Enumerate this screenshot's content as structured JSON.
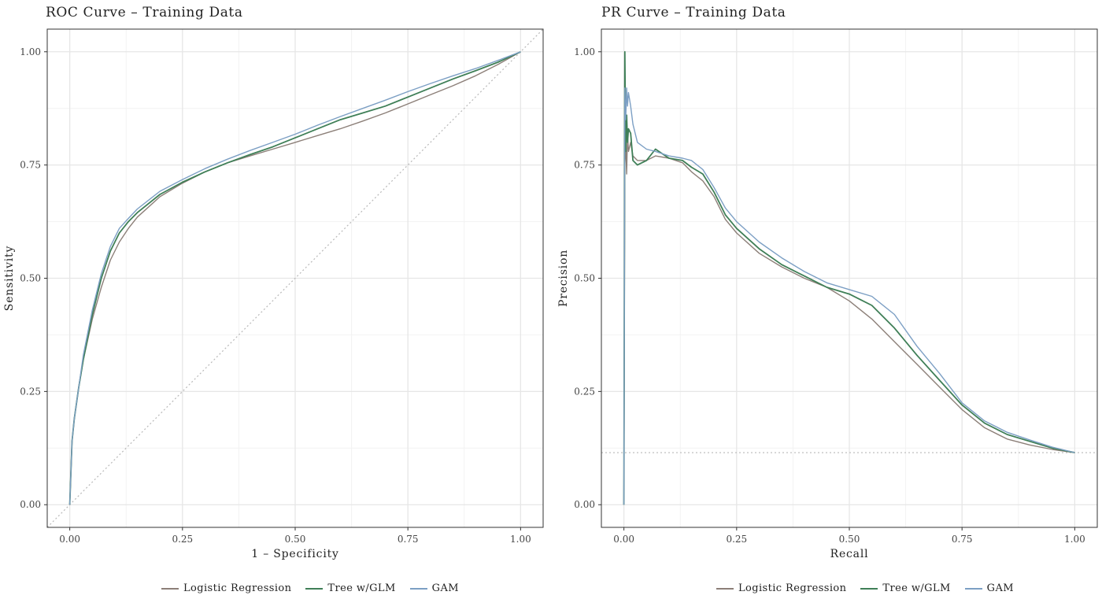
{
  "colors": {
    "logistic": "#8c7f78",
    "tree": "#3f7f57",
    "gam": "#7c9fc4",
    "reference": "#b8b8b8",
    "grid_major": "#e6e6e6",
    "grid_minor": "#f2f2f2",
    "panel_border": "#333333"
  },
  "legend": {
    "items": [
      {
        "label": "Logistic Regression",
        "color": "#8c7f78"
      },
      {
        "label": "Tree w/GLM",
        "color": "#3f7f57"
      },
      {
        "label": "GAM",
        "color": "#7c9fc4"
      }
    ]
  },
  "chart_data": [
    {
      "type": "line",
      "title": "ROC Curve – Training Data",
      "xlabel": "1 – Specificity",
      "ylabel": "Sensitivity",
      "xlim": [
        -0.05,
        1.05
      ],
      "ylim": [
        -0.05,
        1.05
      ],
      "x_ticks": [
        "0.00",
        "0.25",
        "0.50",
        "0.75",
        "1.00"
      ],
      "y_ticks": [
        "0.00",
        "0.25",
        "0.50",
        "0.75",
        "1.00"
      ],
      "grid": true,
      "reference_line": {
        "type": "diagonal",
        "style": "dotted"
      },
      "series": [
        {
          "name": "Logistic Regression",
          "x": [
            0,
            0.005,
            0.01,
            0.02,
            0.03,
            0.05,
            0.07,
            0.09,
            0.11,
            0.13,
            0.15,
            0.2,
            0.25,
            0.3,
            0.35,
            0.4,
            0.45,
            0.5,
            0.55,
            0.6,
            0.65,
            0.7,
            0.75,
            0.8,
            0.85,
            0.9,
            0.95,
            1.0
          ],
          "y": [
            0,
            0.14,
            0.19,
            0.26,
            0.32,
            0.41,
            0.48,
            0.54,
            0.58,
            0.61,
            0.635,
            0.68,
            0.71,
            0.735,
            0.755,
            0.77,
            0.785,
            0.8,
            0.815,
            0.83,
            0.847,
            0.865,
            0.885,
            0.905,
            0.925,
            0.947,
            0.972,
            1.0
          ]
        },
        {
          "name": "Tree w/GLM",
          "x": [
            0,
            0.005,
            0.01,
            0.02,
            0.03,
            0.05,
            0.07,
            0.09,
            0.11,
            0.13,
            0.15,
            0.2,
            0.25,
            0.3,
            0.35,
            0.4,
            0.45,
            0.5,
            0.55,
            0.6,
            0.65,
            0.7,
            0.75,
            0.8,
            0.85,
            0.9,
            0.95,
            1.0
          ],
          "y": [
            0,
            0.14,
            0.19,
            0.26,
            0.32,
            0.42,
            0.5,
            0.56,
            0.6,
            0.625,
            0.645,
            0.685,
            0.712,
            0.735,
            0.755,
            0.773,
            0.79,
            0.81,
            0.83,
            0.85,
            0.865,
            0.88,
            0.9,
            0.92,
            0.94,
            0.958,
            0.977,
            1.0
          ]
        },
        {
          "name": "GAM",
          "x": [
            0,
            0.005,
            0.01,
            0.02,
            0.03,
            0.05,
            0.07,
            0.09,
            0.11,
            0.13,
            0.15,
            0.2,
            0.25,
            0.3,
            0.35,
            0.4,
            0.45,
            0.5,
            0.55,
            0.6,
            0.65,
            0.7,
            0.75,
            0.8,
            0.85,
            0.9,
            0.95,
            1.0
          ],
          "y": [
            0,
            0.14,
            0.19,
            0.26,
            0.33,
            0.43,
            0.51,
            0.57,
            0.61,
            0.632,
            0.653,
            0.692,
            0.718,
            0.742,
            0.763,
            0.782,
            0.8,
            0.818,
            0.838,
            0.857,
            0.875,
            0.893,
            0.912,
            0.93,
            0.947,
            0.963,
            0.981,
            1.0
          ]
        }
      ]
    },
    {
      "type": "line",
      "title": "PR Curve – Training Data",
      "xlabel": "Recall",
      "ylabel": "Precision",
      "xlim": [
        -0.05,
        1.05
      ],
      "ylim": [
        -0.05,
        1.05
      ],
      "x_ticks": [
        "0.00",
        "0.25",
        "0.50",
        "0.75",
        "1.00"
      ],
      "y_ticks": [
        "0.00",
        "0.25",
        "0.50",
        "0.75",
        "1.00"
      ],
      "grid": true,
      "reference_line": {
        "type": "horizontal",
        "y": 0.115,
        "style": "dotted"
      },
      "series": [
        {
          "name": "Logistic Regression",
          "x": [
            0,
            0.002,
            0.004,
            0.006,
            0.008,
            0.01,
            0.015,
            0.02,
            0.03,
            0.05,
            0.07,
            0.1,
            0.13,
            0.15,
            0.175,
            0.2,
            0.225,
            0.25,
            0.3,
            0.35,
            0.4,
            0.45,
            0.5,
            0.55,
            0.6,
            0.65,
            0.7,
            0.75,
            0.8,
            0.85,
            0.9,
            0.95,
            1.0
          ],
          "y": [
            0,
            0.75,
            0.8,
            0.73,
            0.82,
            0.78,
            0.8,
            0.77,
            0.76,
            0.76,
            0.77,
            0.765,
            0.755,
            0.735,
            0.715,
            0.68,
            0.63,
            0.6,
            0.555,
            0.525,
            0.5,
            0.48,
            0.45,
            0.41,
            0.36,
            0.31,
            0.26,
            0.21,
            0.17,
            0.145,
            0.132,
            0.122,
            0.115
          ]
        },
        {
          "name": "Tree w/GLM",
          "x": [
            0,
            0.002,
            0.004,
            0.006,
            0.008,
            0.01,
            0.015,
            0.02,
            0.03,
            0.05,
            0.07,
            0.1,
            0.13,
            0.15,
            0.175,
            0.2,
            0.225,
            0.25,
            0.3,
            0.35,
            0.4,
            0.45,
            0.5,
            0.55,
            0.6,
            0.65,
            0.7,
            0.75,
            0.8,
            0.85,
            0.9,
            0.95,
            1.0
          ],
          "y": [
            0,
            1.0,
            0.78,
            0.86,
            0.8,
            0.83,
            0.82,
            0.76,
            0.75,
            0.76,
            0.785,
            0.765,
            0.76,
            0.745,
            0.73,
            0.69,
            0.64,
            0.61,
            0.565,
            0.53,
            0.505,
            0.48,
            0.465,
            0.44,
            0.39,
            0.33,
            0.275,
            0.22,
            0.18,
            0.155,
            0.14,
            0.125,
            0.115
          ]
        },
        {
          "name": "GAM",
          "x": [
            0,
            0.002,
            0.004,
            0.006,
            0.008,
            0.01,
            0.015,
            0.02,
            0.03,
            0.05,
            0.07,
            0.1,
            0.13,
            0.15,
            0.175,
            0.2,
            0.225,
            0.25,
            0.3,
            0.35,
            0.4,
            0.45,
            0.5,
            0.55,
            0.6,
            0.65,
            0.7,
            0.75,
            0.8,
            0.85,
            0.9,
            0.95,
            1.0
          ],
          "y": [
            0,
            0.92,
            0.85,
            0.92,
            0.88,
            0.91,
            0.88,
            0.84,
            0.8,
            0.785,
            0.78,
            0.77,
            0.765,
            0.76,
            0.74,
            0.7,
            0.655,
            0.625,
            0.58,
            0.545,
            0.515,
            0.49,
            0.475,
            0.46,
            0.42,
            0.35,
            0.29,
            0.225,
            0.185,
            0.16,
            0.143,
            0.127,
            0.115
          ]
        }
      ]
    }
  ]
}
